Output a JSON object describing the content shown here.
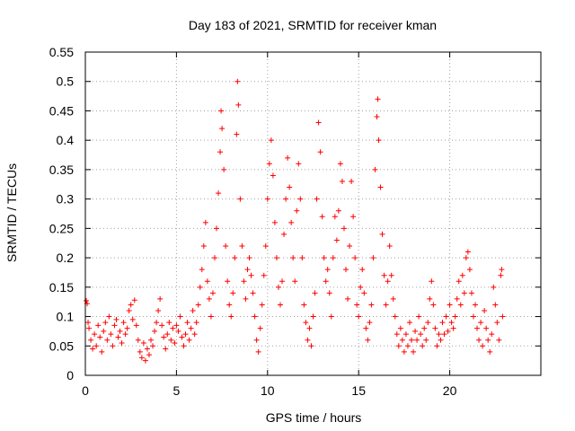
{
  "chart_data": {
    "type": "scatter",
    "title": "Day 183 of 2021, SRMTID for receiver kman",
    "xlabel": "GPS time / hours",
    "ylabel": "SRMTID / TECUs",
    "xlim": [
      0,
      25
    ],
    "ylim": [
      0,
      0.55
    ],
    "x_ticks": [
      "0",
      "5",
      "10",
      "15",
      "20"
    ],
    "y_ticks": [
      "0",
      "0.05",
      "0.1",
      "0.15",
      "0.2",
      "0.25",
      "0.3",
      "0.35",
      "0.4",
      "0.45",
      "0.5",
      "0.55"
    ],
    "grid": true,
    "marker": "+",
    "color": "#ff0000",
    "series": [
      {
        "name": "SRMTID",
        "points": [
          [
            0.05,
            0.127
          ],
          [
            0.1,
            0.122
          ],
          [
            0.15,
            0.09
          ],
          [
            0.2,
            0.08
          ],
          [
            0.3,
            0.06
          ],
          [
            0.4,
            0.045
          ],
          [
            0.5,
            0.07
          ],
          [
            0.6,
            0.05
          ],
          [
            0.7,
            0.085
          ],
          [
            0.8,
            0.065
          ],
          [
            0.9,
            0.04
          ],
          [
            1.0,
            0.075
          ],
          [
            1.1,
            0.09
          ],
          [
            1.2,
            0.06
          ],
          [
            1.3,
            0.1
          ],
          [
            1.4,
            0.07
          ],
          [
            1.5,
            0.05
          ],
          [
            1.6,
            0.085
          ],
          [
            1.7,
            0.095
          ],
          [
            1.8,
            0.065
          ],
          [
            1.9,
            0.075
          ],
          [
            2.0,
            0.055
          ],
          [
            2.1,
            0.09
          ],
          [
            2.2,
            0.07
          ],
          [
            2.3,
            0.08
          ],
          [
            2.4,
            0.11
          ],
          [
            2.5,
            0.12
          ],
          [
            2.6,
            0.095
          ],
          [
            2.7,
            0.128
          ],
          [
            2.8,
            0.085
          ],
          [
            2.9,
            0.06
          ],
          [
            3.0,
            0.04
          ],
          [
            3.1,
            0.03
          ],
          [
            3.2,
            0.055
          ],
          [
            3.3,
            0.025
          ],
          [
            3.4,
            0.045
          ],
          [
            3.5,
            0.035
          ],
          [
            3.6,
            0.06
          ],
          [
            3.7,
            0.05
          ],
          [
            3.8,
            0.075
          ],
          [
            3.9,
            0.09
          ],
          [
            4.0,
            0.11
          ],
          [
            4.1,
            0.13
          ],
          [
            4.2,
            0.085
          ],
          [
            4.3,
            0.065
          ],
          [
            4.4,
            0.045
          ],
          [
            4.5,
            0.07
          ],
          [
            4.6,
            0.09
          ],
          [
            4.7,
            0.06
          ],
          [
            4.8,
            0.08
          ],
          [
            4.9,
            0.055
          ],
          [
            5.0,
            0.085
          ],
          [
            5.1,
            0.075
          ],
          [
            5.2,
            0.1
          ],
          [
            5.3,
            0.065
          ],
          [
            5.4,
            0.05
          ],
          [
            5.5,
            0.07
          ],
          [
            5.6,
            0.09
          ],
          [
            5.7,
            0.06
          ],
          [
            5.8,
            0.08
          ],
          [
            5.9,
            0.11
          ],
          [
            6.0,
            0.07
          ],
          [
            6.1,
            0.09
          ],
          [
            6.2,
            0.12
          ],
          [
            6.3,
            0.15
          ],
          [
            6.4,
            0.18
          ],
          [
            6.5,
            0.22
          ],
          [
            6.6,
            0.26
          ],
          [
            6.7,
            0.16
          ],
          [
            6.8,
            0.13
          ],
          [
            6.9,
            0.1
          ],
          [
            7.0,
            0.14
          ],
          [
            7.1,
            0.2
          ],
          [
            7.2,
            0.25
          ],
          [
            7.3,
            0.31
          ],
          [
            7.4,
            0.38
          ],
          [
            7.45,
            0.45
          ],
          [
            7.5,
            0.42
          ],
          [
            7.6,
            0.35
          ],
          [
            7.7,
            0.22
          ],
          [
            7.8,
            0.16
          ],
          [
            7.9,
            0.12
          ],
          [
            8.0,
            0.1
          ],
          [
            8.1,
            0.14
          ],
          [
            8.2,
            0.2
          ],
          [
            8.3,
            0.41
          ],
          [
            8.35,
            0.5
          ],
          [
            8.4,
            0.46
          ],
          [
            8.5,
            0.3
          ],
          [
            8.6,
            0.22
          ],
          [
            8.7,
            0.16
          ],
          [
            8.8,
            0.13
          ],
          [
            8.9,
            0.18
          ],
          [
            9.0,
            0.2
          ],
          [
            9.1,
            0.17
          ],
          [
            9.2,
            0.14
          ],
          [
            9.3,
            0.1
          ],
          [
            9.4,
            0.06
          ],
          [
            9.5,
            0.04
          ],
          [
            9.6,
            0.08
          ],
          [
            9.7,
            0.12
          ],
          [
            9.8,
            0.17
          ],
          [
            9.9,
            0.22
          ],
          [
            10.0,
            0.3
          ],
          [
            10.1,
            0.36
          ],
          [
            10.2,
            0.4
          ],
          [
            10.3,
            0.34
          ],
          [
            10.4,
            0.26
          ],
          [
            10.5,
            0.2
          ],
          [
            10.6,
            0.15
          ],
          [
            10.7,
            0.12
          ],
          [
            10.8,
            0.16
          ],
          [
            10.9,
            0.24
          ],
          [
            11.0,
            0.3
          ],
          [
            11.1,
            0.37
          ],
          [
            11.2,
            0.32
          ],
          [
            11.3,
            0.26
          ],
          [
            11.4,
            0.2
          ],
          [
            11.5,
            0.16
          ],
          [
            11.6,
            0.28
          ],
          [
            11.7,
            0.36
          ],
          [
            11.8,
            0.3
          ],
          [
            11.9,
            0.2
          ],
          [
            12.0,
            0.12
          ],
          [
            12.1,
            0.09
          ],
          [
            12.2,
            0.06
          ],
          [
            12.3,
            0.08
          ],
          [
            12.4,
            0.05
          ],
          [
            12.5,
            0.1
          ],
          [
            12.6,
            0.14
          ],
          [
            12.7,
            0.3
          ],
          [
            12.8,
            0.43
          ],
          [
            12.9,
            0.38
          ],
          [
            13.0,
            0.27
          ],
          [
            13.1,
            0.2
          ],
          [
            13.2,
            0.16
          ],
          [
            13.3,
            0.18
          ],
          [
            13.4,
            0.14
          ],
          [
            13.5,
            0.1
          ],
          [
            13.6,
            0.2
          ],
          [
            13.7,
            0.27
          ],
          [
            13.8,
            0.23
          ],
          [
            13.9,
            0.28
          ],
          [
            14.0,
            0.36
          ],
          [
            14.1,
            0.33
          ],
          [
            14.2,
            0.25
          ],
          [
            14.3,
            0.18
          ],
          [
            14.4,
            0.13
          ],
          [
            14.5,
            0.22
          ],
          [
            14.6,
            0.33
          ],
          [
            14.7,
            0.27
          ],
          [
            14.8,
            0.2
          ],
          [
            14.9,
            0.12
          ],
          [
            15.0,
            0.1
          ],
          [
            15.1,
            0.15
          ],
          [
            15.2,
            0.18
          ],
          [
            15.3,
            0.14
          ],
          [
            15.4,
            0.08
          ],
          [
            15.5,
            0.06
          ],
          [
            15.6,
            0.09
          ],
          [
            15.7,
            0.12
          ],
          [
            15.8,
            0.2
          ],
          [
            15.9,
            0.35
          ],
          [
            16.0,
            0.44
          ],
          [
            16.05,
            0.47
          ],
          [
            16.1,
            0.4
          ],
          [
            16.2,
            0.32
          ],
          [
            16.3,
            0.24
          ],
          [
            16.4,
            0.17
          ],
          [
            16.5,
            0.12
          ],
          [
            16.6,
            0.16
          ],
          [
            16.7,
            0.22
          ],
          [
            16.8,
            0.17
          ],
          [
            16.9,
            0.13
          ],
          [
            17.0,
            0.1
          ],
          [
            17.1,
            0.07
          ],
          [
            17.2,
            0.05
          ],
          [
            17.3,
            0.08
          ],
          [
            17.4,
            0.06
          ],
          [
            17.5,
            0.04
          ],
          [
            17.6,
            0.07
          ],
          [
            17.7,
            0.05
          ],
          [
            17.8,
            0.09
          ],
          [
            17.9,
            0.06
          ],
          [
            18.0,
            0.04
          ],
          [
            18.1,
            0.075
          ],
          [
            18.2,
            0.06
          ],
          [
            18.3,
            0.1
          ],
          [
            18.4,
            0.07
          ],
          [
            18.5,
            0.05
          ],
          [
            18.6,
            0.08
          ],
          [
            18.7,
            0.06
          ],
          [
            18.8,
            0.09
          ],
          [
            18.9,
            0.13
          ],
          [
            19.0,
            0.16
          ],
          [
            19.1,
            0.12
          ],
          [
            19.2,
            0.08
          ],
          [
            19.3,
            0.05
          ],
          [
            19.4,
            0.07
          ],
          [
            19.5,
            0.06
          ],
          [
            19.6,
            0.09
          ],
          [
            19.7,
            0.07
          ],
          [
            19.8,
            0.1
          ],
          [
            19.9,
            0.075
          ],
          [
            20.0,
            0.12
          ],
          [
            20.1,
            0.09
          ],
          [
            20.2,
            0.08
          ],
          [
            20.3,
            0.1
          ],
          [
            20.4,
            0.13
          ],
          [
            20.5,
            0.16
          ],
          [
            20.6,
            0.12
          ],
          [
            20.7,
            0.17
          ],
          [
            20.8,
            0.14
          ],
          [
            20.9,
            0.2
          ],
          [
            21.0,
            0.21
          ],
          [
            21.1,
            0.18
          ],
          [
            21.2,
            0.14
          ],
          [
            21.3,
            0.1
          ],
          [
            21.4,
            0.12
          ],
          [
            21.5,
            0.08
          ],
          [
            21.6,
            0.06
          ],
          [
            21.7,
            0.09
          ],
          [
            21.8,
            0.05
          ],
          [
            21.9,
            0.11
          ],
          [
            22.0,
            0.08
          ],
          [
            22.1,
            0.06
          ],
          [
            22.2,
            0.04
          ],
          [
            22.3,
            0.07
          ],
          [
            22.4,
            0.15
          ],
          [
            22.5,
            0.12
          ],
          [
            22.6,
            0.09
          ],
          [
            22.7,
            0.06
          ],
          [
            22.8,
            0.17
          ],
          [
            22.85,
            0.18
          ],
          [
            22.9,
            0.1
          ]
        ]
      }
    ]
  }
}
